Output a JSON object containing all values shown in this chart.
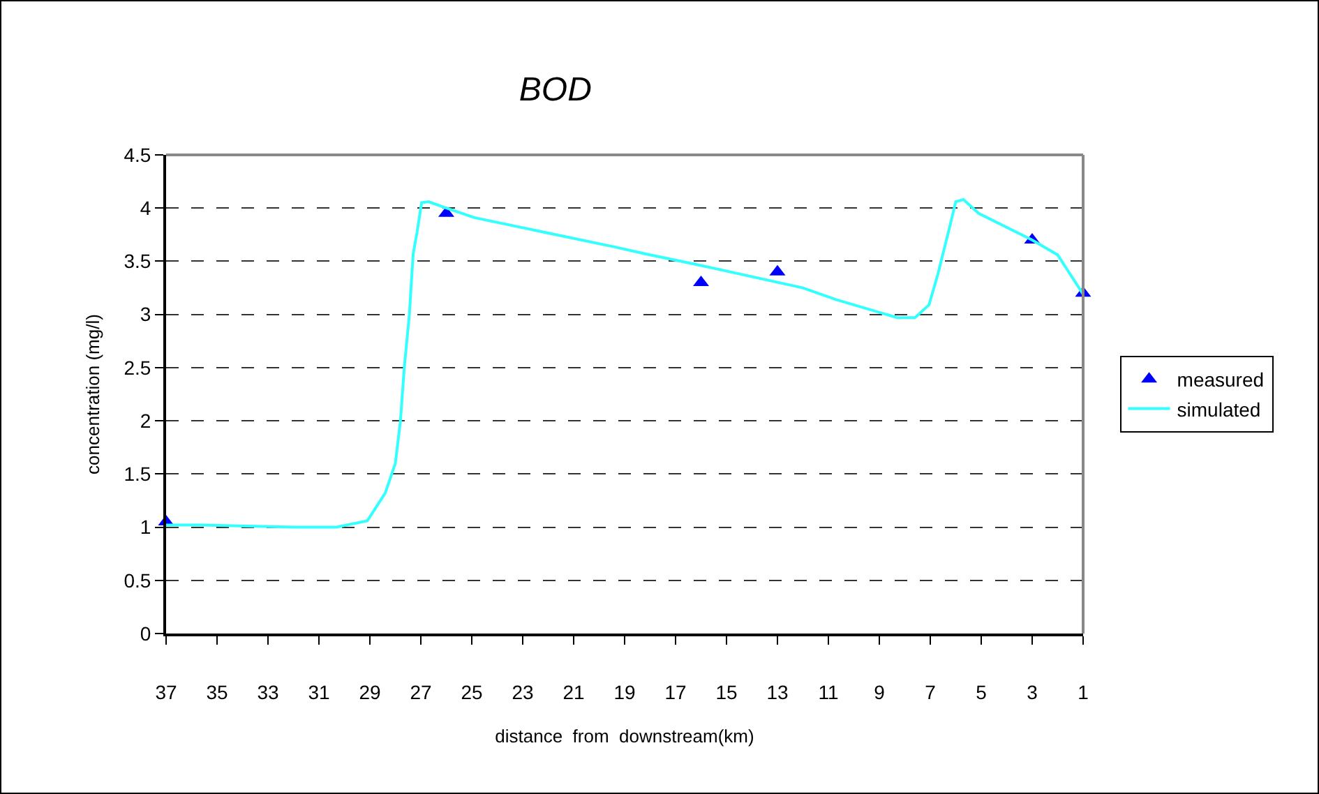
{
  "chart_data": {
    "type": "line",
    "title": "BOD",
    "xlabel": "distance  from  downstream(km)",
    "ylabel": "concentration (mg/l)",
    "xlim": [
      37,
      1
    ],
    "xticks": [
      37,
      35,
      33,
      31,
      29,
      27,
      25,
      23,
      21,
      19,
      17,
      15,
      13,
      11,
      9,
      7,
      5,
      3,
      1
    ],
    "ylim": [
      0,
      4.5
    ],
    "yticks": [
      0,
      0.5,
      1,
      1.5,
      2,
      2.5,
      3,
      3.5,
      4,
      4.5
    ],
    "grid": "y",
    "legend": "right",
    "series": [
      {
        "name": "measured",
        "type": "scatter",
        "marker": "triangle",
        "color": "#0000ff",
        "x": [
          37,
          26,
          16,
          13,
          3,
          1
        ],
        "values": [
          1.05,
          3.95,
          3.3,
          3.4,
          3.7,
          3.2
        ]
      },
      {
        "name": "simulated",
        "marker": "none",
        "line_style": "solid",
        "color": "#33ffff",
        "x": [
          37,
          35.6,
          32,
          30.3,
          29.1,
          28.4,
          28,
          27.8,
          27.65,
          27.45,
          27.3,
          27.15,
          26.97,
          26.7,
          26,
          24.9,
          19.3,
          18.2,
          16,
          12,
          10.7,
          8.3,
          7.6,
          7.05,
          6.7,
          6.2,
          6,
          5.7,
          5.1,
          3,
          2,
          1
        ],
        "values": [
          1.02,
          1.02,
          1,
          1,
          1.06,
          1.32,
          1.6,
          2,
          2.5,
          3,
          3.57,
          3.77,
          4.05,
          4.06,
          4,
          3.91,
          3.63,
          3.57,
          3.46,
          3.25,
          3.14,
          2.97,
          2.97,
          3.09,
          3.38,
          3.86,
          4.06,
          4.08,
          3.95,
          3.7,
          3.56,
          3.19
        ]
      }
    ]
  }
}
